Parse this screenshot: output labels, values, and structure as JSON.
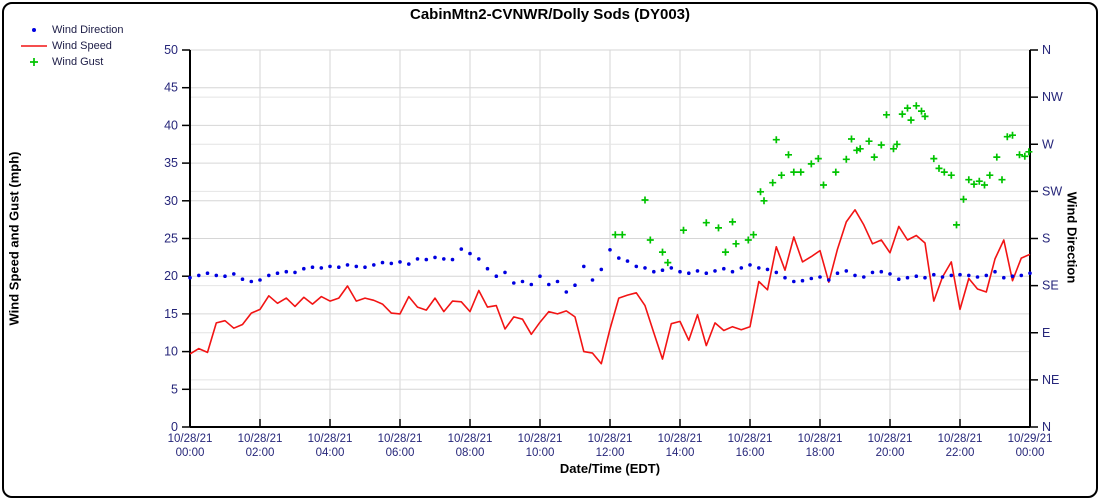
{
  "title": "CabinMtn2-CVNWR/Dolly Sods (DY003)",
  "legend": {
    "items": [
      {
        "label": "Wind Direction",
        "marker": "dot",
        "color": "#0000e0"
      },
      {
        "label": "Wind Speed",
        "marker": "line",
        "color": "#f21414"
      },
      {
        "label": "Wind Gust",
        "marker": "plus",
        "color": "#00c400"
      }
    ]
  },
  "axes": {
    "y_left_label": "Wind Speed and Gust (mph)",
    "y_right_label": "Wind Direction",
    "x_label": "Date/Time (EDT)"
  },
  "colors": {
    "speed_line": "#f21414",
    "direction_dot": "#0000e0",
    "gust_plus": "#00c400",
    "axis_line": "#000000",
    "grid_major": "#d6d6d6",
    "grid_minor": "#e4e4e4",
    "tick_text": "#26267a"
  },
  "chart_data": {
    "type": "line",
    "title": "CabinMtn2-CVNWR/Dolly Sods (DY003)",
    "xlabel": "Date/Time (EDT)",
    "ylabel_left": "Wind Speed and Gust (mph)",
    "ylabel_right": "Wind Direction",
    "ylim": [
      0,
      50
    ],
    "y_ticks": [
      0,
      5,
      10,
      15,
      20,
      25,
      30,
      35,
      40,
      45,
      50
    ],
    "right_axis_labels_bottom_to_top": [
      "N",
      "NE",
      "E",
      "SE",
      "S",
      "SW",
      "W",
      "NW",
      "N"
    ],
    "x_range_hours": [
      0,
      24
    ],
    "x_tick_step_hours": 2,
    "x_ticks": [
      {
        "date": "10/28/21",
        "time": "00:00"
      },
      {
        "date": "10/28/21",
        "time": "02:00"
      },
      {
        "date": "10/28/21",
        "time": "04:00"
      },
      {
        "date": "10/28/21",
        "time": "06:00"
      },
      {
        "date": "10/28/21",
        "time": "08:00"
      },
      {
        "date": "10/28/21",
        "time": "10:00"
      },
      {
        "date": "10/28/21",
        "time": "12:00"
      },
      {
        "date": "10/28/21",
        "time": "14:00"
      },
      {
        "date": "10/28/21",
        "time": "16:00"
      },
      {
        "date": "10/28/21",
        "time": "18:00"
      },
      {
        "date": "10/28/21",
        "time": "20:00"
      },
      {
        "date": "10/28/21",
        "time": "22:00"
      },
      {
        "date": "10/29/21",
        "time": "00:00"
      }
    ],
    "grid": true,
    "legend_position": "top-left",
    "series": [
      {
        "name": "Wind Speed",
        "style": "line",
        "color": "#f21414",
        "x_start_hour": 0,
        "x_step_hours": 0.25,
        "values": [
          9.7,
          10.4,
          9.9,
          13.8,
          14.1,
          13.1,
          13.6,
          15.1,
          15.6,
          17.4,
          16.4,
          17.1,
          16.0,
          17.2,
          16.3,
          17.3,
          16.7,
          17.1,
          18.7,
          16.7,
          17.1,
          16.8,
          16.3,
          15.1,
          15.0,
          17.3,
          15.9,
          15.5,
          17.1,
          15.3,
          16.7,
          16.6,
          15.3,
          18.1,
          15.9,
          16.1,
          13.0,
          14.6,
          14.3,
          12.3,
          13.9,
          15.3,
          15.0,
          15.4,
          14.6,
          10.0,
          9.8,
          8.4,
          13.0,
          17.1,
          17.5,
          17.8,
          16.1,
          12.5,
          9.0,
          13.7,
          14.0,
          11.5,
          14.9,
          10.8,
          13.8,
          12.8,
          13.3,
          12.9,
          13.3,
          19.3,
          18.2,
          23.9,
          20.8,
          25.2,
          21.9,
          22.6,
          23.4,
          19.2,
          23.6,
          27.2,
          28.8,
          26.8,
          24.3,
          24.8,
          23.1,
          26.6,
          24.8,
          25.4,
          24.4,
          16.7,
          19.9,
          21.9,
          15.6,
          19.7,
          18.3,
          17.9,
          22.3,
          24.8,
          19.4,
          22.4,
          22.9
        ]
      },
      {
        "name": "Wind Direction",
        "style": "dots",
        "color": "#0000e0",
        "x_start_hour": 0,
        "x_step_hours": 0.25,
        "values": [
          19.8,
          20.1,
          20.4,
          20.1,
          20.0,
          20.3,
          19.6,
          19.3,
          19.5,
          20.1,
          20.4,
          20.6,
          20.5,
          21.0,
          21.2,
          21.1,
          21.3,
          21.2,
          21.5,
          21.3,
          21.2,
          21.5,
          21.8,
          21.7,
          21.9,
          21.6,
          22.3,
          22.2,
          22.5,
          22.3,
          22.2,
          23.6,
          23.0,
          22.3,
          21.0,
          20.0,
          20.5,
          19.1,
          19.3,
          18.9,
          20.0,
          18.9,
          19.3,
          17.9,
          18.8,
          21.3,
          19.5,
          20.9,
          23.5,
          22.4,
          22.0,
          21.3,
          21.1,
          20.6,
          20.8,
          21.1,
          20.6,
          20.4,
          20.7,
          20.4,
          20.7,
          21.0,
          20.6,
          21.1,
          21.5,
          21.1,
          20.9,
          20.5,
          19.8,
          19.3,
          19.4,
          19.7,
          19.9,
          19.5,
          20.4,
          20.7,
          20.1,
          19.9,
          20.5,
          20.6,
          20.3,
          19.6,
          19.8,
          20.0,
          19.8,
          20.2,
          19.9,
          20.1,
          20.2,
          20.1,
          19.9,
          20.1,
          20.6,
          19.8,
          20.0,
          20.1,
          20.4
        ]
      },
      {
        "name": "Wind Gust",
        "style": "plus",
        "color": "#00c400",
        "points": [
          [
            12.15,
            25.5
          ],
          [
            12.35,
            25.5
          ],
          [
            13.0,
            30.1
          ],
          [
            13.15,
            24.8
          ],
          [
            13.5,
            23.2
          ],
          [
            13.65,
            21.8
          ],
          [
            14.1,
            26.1
          ],
          [
            14.75,
            27.1
          ],
          [
            15.1,
            26.4
          ],
          [
            15.3,
            23.2
          ],
          [
            15.5,
            27.2
          ],
          [
            15.6,
            24.3
          ],
          [
            15.95,
            24.8
          ],
          [
            16.1,
            25.5
          ],
          [
            16.3,
            31.2
          ],
          [
            16.4,
            30.0
          ],
          [
            16.65,
            32.4
          ],
          [
            16.75,
            38.1
          ],
          [
            16.9,
            33.4
          ],
          [
            17.1,
            36.1
          ],
          [
            17.25,
            33.8
          ],
          [
            17.45,
            33.8
          ],
          [
            17.75,
            34.9
          ],
          [
            17.95,
            35.6
          ],
          [
            18.1,
            32.1
          ],
          [
            18.45,
            33.8
          ],
          [
            18.75,
            35.5
          ],
          [
            18.9,
            38.2
          ],
          [
            19.05,
            36.7
          ],
          [
            19.15,
            36.9
          ],
          [
            19.4,
            37.9
          ],
          [
            19.55,
            35.8
          ],
          [
            19.75,
            37.4
          ],
          [
            19.9,
            41.4
          ],
          [
            20.1,
            36.9
          ],
          [
            20.2,
            37.5
          ],
          [
            20.35,
            41.5
          ],
          [
            20.5,
            42.3
          ],
          [
            20.6,
            40.7
          ],
          [
            20.75,
            42.6
          ],
          [
            20.9,
            41.9
          ],
          [
            21.0,
            41.2
          ],
          [
            21.25,
            35.6
          ],
          [
            21.4,
            34.3
          ],
          [
            21.55,
            33.8
          ],
          [
            21.75,
            33.4
          ],
          [
            21.9,
            26.8
          ],
          [
            22.1,
            30.2
          ],
          [
            22.25,
            32.8
          ],
          [
            22.4,
            32.2
          ],
          [
            22.55,
            32.6
          ],
          [
            22.7,
            32.1
          ],
          [
            22.85,
            33.4
          ],
          [
            23.05,
            35.8
          ],
          [
            23.2,
            32.8
          ],
          [
            23.35,
            38.5
          ],
          [
            23.5,
            38.7
          ],
          [
            23.7,
            36.1
          ],
          [
            23.85,
            35.9
          ],
          [
            23.97,
            36.5
          ]
        ]
      }
    ]
  }
}
